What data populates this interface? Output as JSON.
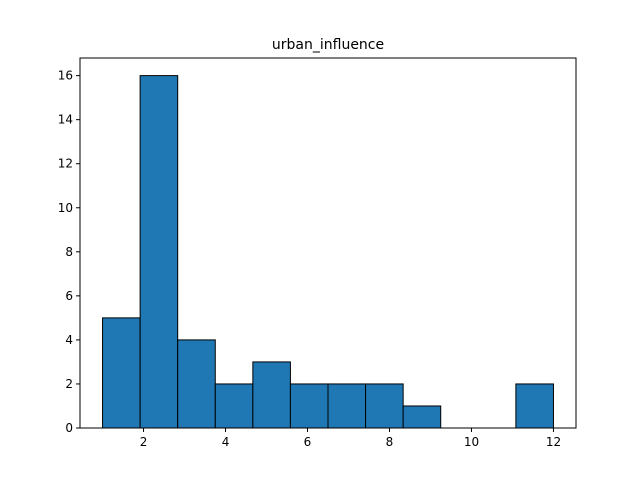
{
  "chart_data": {
    "type": "bar",
    "title": "urban_influence",
    "xlabel": "",
    "ylabel": "",
    "bin_edges": [
      1.0,
      1.9167,
      2.8333,
      3.75,
      4.6667,
      5.5833,
      6.5,
      7.4167,
      8.3333,
      9.25,
      10.1667,
      11.0833,
      12.0
    ],
    "values": [
      5,
      16,
      4,
      2,
      3,
      2,
      2,
      2,
      1,
      0,
      0,
      2
    ],
    "xlim": [
      0.45,
      12.55
    ],
    "ylim": [
      0,
      16.8
    ],
    "x_ticks": [
      2,
      4,
      6,
      8,
      10,
      12
    ],
    "y_ticks": [
      0,
      2,
      4,
      6,
      8,
      10,
      12,
      14,
      16
    ],
    "grid": false,
    "bar_color": "#1f77b4",
    "edge_color": "#000000"
  }
}
